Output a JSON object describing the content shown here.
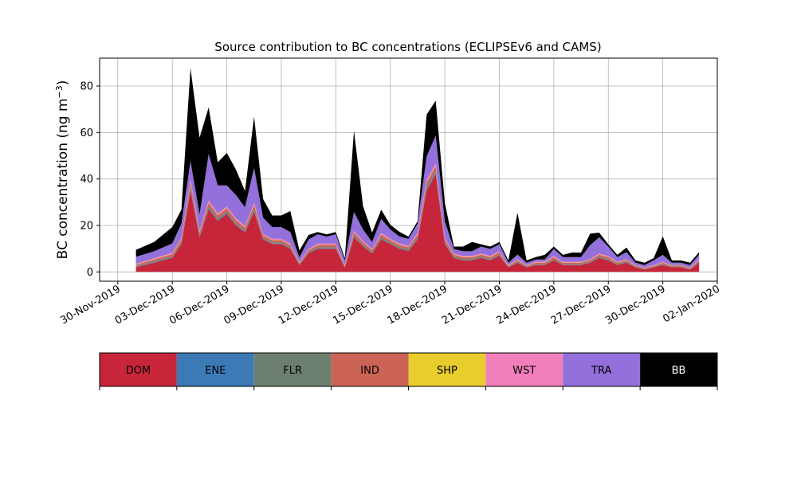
{
  "chart_data": {
    "type": "area",
    "stacked": true,
    "title": "Source contribution to BC concentrations (ECLIPSEv6 and CAMS)",
    "xlabel": "",
    "ylabel": "BC concentration (ng m",
    "ylabel_superscript": "−3",
    "ylabel_close": ")",
    "ylim": [
      -4,
      92
    ],
    "yticks": [
      0,
      20,
      40,
      60,
      80
    ],
    "xlim": [
      "2019-11-29",
      "2020-01-02"
    ],
    "xticks": [
      "30-Nov-2019",
      "03-Dec-2019",
      "06-Dec-2019",
      "09-Dec-2019",
      "12-Dec-2019",
      "15-Dec-2019",
      "18-Dec-2019",
      "21-Dec-2019",
      "24-Dec-2019",
      "27-Dec-2019",
      "30-Dec-2019",
      "02-Jan-2020"
    ],
    "grid": true,
    "legend": "colorbar-below",
    "x": [
      "2019-12-01",
      "2019-12-02",
      "2019-12-03",
      "2019-12-03T12",
      "2019-12-04",
      "2019-12-04T12",
      "2019-12-05",
      "2019-12-05T12",
      "2019-12-06",
      "2019-12-06T12",
      "2019-12-07",
      "2019-12-07T12",
      "2019-12-08",
      "2019-12-08T12",
      "2019-12-09",
      "2019-12-09T12",
      "2019-12-10",
      "2019-12-10T12",
      "2019-12-11",
      "2019-12-11T12",
      "2019-12-12",
      "2019-12-12T12",
      "2019-12-13",
      "2019-12-13T12",
      "2019-12-14",
      "2019-12-14T12",
      "2019-12-15",
      "2019-12-15T12",
      "2019-12-16",
      "2019-12-16T12",
      "2019-12-17",
      "2019-12-17T12",
      "2019-12-18",
      "2019-12-18T12",
      "2019-12-19",
      "2019-12-19T12",
      "2019-12-20",
      "2019-12-20T12",
      "2019-12-21",
      "2019-12-21T12",
      "2019-12-22",
      "2019-12-22T12",
      "2019-12-23",
      "2019-12-23T12",
      "2019-12-24",
      "2019-12-24T12",
      "2019-12-25",
      "2019-12-25T12",
      "2019-12-26",
      "2019-12-26T12",
      "2019-12-27",
      "2019-12-27T12",
      "2019-12-28",
      "2019-12-28T12",
      "2019-12-29",
      "2019-12-29T12",
      "2019-12-30",
      "2019-12-30T12",
      "2019-12-31",
      "2019-12-31T12",
      "2020-01-01"
    ],
    "series": [
      {
        "name": "DOM",
        "color": "#c7263a",
        "values": [
          2,
          4,
          6,
          12,
          35,
          15,
          27,
          22,
          25,
          20,
          17,
          26,
          14,
          12,
          12,
          10,
          3,
          8,
          10,
          10,
          10,
          2,
          15,
          11,
          8,
          14,
          12,
          10,
          9,
          14,
          35,
          42,
          12,
          6,
          5,
          5,
          6,
          5,
          7,
          2,
          4,
          2,
          3,
          3,
          5,
          3,
          3,
          3,
          4,
          6,
          5,
          3,
          4,
          2,
          1,
          2,
          3,
          2,
          2,
          1,
          4
        ]
      },
      {
        "name": "ENE",
        "color": "#3c7ab6",
        "values": [
          0.2,
          0.2,
          0.2,
          0.3,
          0.5,
          0.3,
          0.4,
          0.3,
          0.3,
          0.3,
          0.3,
          0.4,
          0.3,
          0.2,
          0.2,
          0.2,
          0.1,
          0.2,
          0.2,
          0.2,
          0.2,
          0.1,
          0.3,
          0.2,
          0.2,
          0.3,
          0.2,
          0.2,
          0.2,
          0.3,
          0.5,
          0.5,
          0.3,
          0.2,
          0.2,
          0.2,
          0.2,
          0.2,
          0.2,
          0.1,
          0.2,
          0.1,
          0.1,
          0.1,
          0.2,
          0.1,
          0.1,
          0.1,
          0.2,
          0.2,
          0.2,
          0.1,
          0.2,
          0.1,
          0.1,
          0.1,
          0.1,
          0.1,
          0.1,
          0.1,
          0.2
        ]
      },
      {
        "name": "FLR",
        "color": "#6d8070",
        "values": [
          0.3,
          0.4,
          0.5,
          0.6,
          1,
          0.6,
          0.8,
          0.7,
          0.7,
          0.7,
          0.6,
          0.8,
          0.5,
          0.5,
          0.5,
          0.5,
          0.3,
          0.4,
          0.5,
          0.5,
          0.5,
          0.2,
          0.6,
          0.5,
          0.4,
          0.6,
          0.5,
          0.5,
          0.5,
          0.6,
          1,
          1,
          0.6,
          0.4,
          0.4,
          0.4,
          0.4,
          0.4,
          0.4,
          0.2,
          0.3,
          0.2,
          0.3,
          0.3,
          0.4,
          0.3,
          0.3,
          0.3,
          0.3,
          0.4,
          0.4,
          0.3,
          0.3,
          0.2,
          0.2,
          0.2,
          0.3,
          0.2,
          0.2,
          0.2,
          0.3
        ]
      },
      {
        "name": "IND",
        "color": "#cb6457",
        "values": [
          0.6,
          0.8,
          1,
          1.2,
          2,
          1.2,
          1.6,
          1.4,
          1.4,
          1.3,
          1.2,
          1.6,
          1,
          1,
          1,
          0.9,
          0.5,
          0.8,
          0.9,
          0.9,
          0.9,
          0.4,
          1.2,
          1,
          0.8,
          1.2,
          1,
          1,
          0.9,
          1.2,
          2,
          2,
          1.2,
          0.8,
          0.8,
          0.8,
          0.8,
          0.8,
          0.8,
          0.4,
          0.6,
          0.4,
          0.6,
          0.6,
          0.8,
          0.6,
          0.6,
          0.6,
          0.6,
          0.8,
          0.8,
          0.6,
          0.6,
          0.4,
          0.4,
          0.4,
          0.6,
          0.4,
          0.4,
          0.4,
          0.6
        ]
      },
      {
        "name": "SHP",
        "color": "#e8cd2c",
        "values": [
          0.1,
          0.1,
          0.1,
          0.1,
          0.2,
          0.1,
          0.2,
          0.1,
          0.1,
          0.1,
          0.1,
          0.2,
          0.1,
          0.1,
          0.1,
          0.1,
          0.05,
          0.1,
          0.1,
          0.1,
          0.1,
          0.05,
          0.1,
          0.1,
          0.1,
          0.1,
          0.1,
          0.1,
          0.1,
          0.1,
          0.2,
          0.2,
          0.1,
          0.1,
          0.1,
          0.1,
          0.1,
          0.1,
          0.1,
          0.05,
          0.1,
          0.05,
          0.05,
          0.05,
          0.1,
          0.05,
          0.05,
          0.05,
          0.1,
          0.1,
          0.1,
          0.05,
          0.1,
          0.05,
          0.05,
          0.05,
          0.05,
          0.05,
          0.05,
          0.05,
          0.1
        ]
      },
      {
        "name": "WST",
        "color": "#f07fbc",
        "values": [
          0.3,
          0.4,
          0.5,
          0.6,
          1,
          0.6,
          0.8,
          0.7,
          0.7,
          0.7,
          0.6,
          0.8,
          0.5,
          0.5,
          0.5,
          0.5,
          0.3,
          0.4,
          0.5,
          0.5,
          0.5,
          0.2,
          0.6,
          0.5,
          0.4,
          0.6,
          0.5,
          0.5,
          0.5,
          0.6,
          1,
          1,
          0.6,
          0.4,
          0.4,
          0.4,
          0.4,
          0.4,
          0.4,
          0.2,
          0.3,
          0.2,
          0.3,
          0.3,
          0.4,
          0.3,
          0.3,
          0.3,
          0.3,
          0.4,
          0.4,
          0.3,
          0.3,
          0.2,
          0.2,
          0.2,
          0.3,
          0.2,
          0.2,
          0.2,
          0.3
        ]
      },
      {
        "name": "TRA",
        "color": "#9370db",
        "values": [
          3,
          3,
          4,
          6,
          8,
          7,
          20,
          12,
          9,
          10,
          8,
          15,
          7,
          5,
          5,
          5,
          2,
          4,
          4,
          3,
          4,
          2,
          8,
          5,
          3,
          6,
          4,
          3,
          3,
          4,
          10,
          12,
          7,
          2,
          2,
          2,
          3,
          3,
          3,
          1,
          2,
          1,
          1,
          1,
          3,
          2,
          2,
          2,
          6,
          7,
          4,
          2,
          3,
          1,
          1,
          2,
          3,
          1,
          1,
          1,
          2
        ]
      },
      {
        "name": "BB",
        "color": "#000000",
        "values": [
          3,
          4,
          7,
          6,
          40,
          33,
          20,
          10,
          14,
          11,
          7,
          22,
          8,
          5,
          5,
          9,
          3,
          2,
          1,
          1,
          1,
          1,
          35,
          10,
          4,
          4,
          2,
          2,
          1,
          1,
          18,
          15,
          8,
          1,
          2,
          4,
          1,
          1,
          1,
          1,
          18,
          1,
          1,
          2,
          1,
          1,
          2,
          2,
          5,
          2,
          1,
          1,
          2,
          1,
          1,
          1,
          8,
          1,
          1,
          1,
          1
        ]
      }
    ]
  },
  "legend_colorbar": {
    "items": [
      {
        "label": "DOM",
        "color": "#c7263a",
        "text_color": "#000000"
      },
      {
        "label": "ENE",
        "color": "#3c7ab6",
        "text_color": "#000000"
      },
      {
        "label": "FLR",
        "color": "#6d8070",
        "text_color": "#000000"
      },
      {
        "label": "IND",
        "color": "#cb6457",
        "text_color": "#000000"
      },
      {
        "label": "SHP",
        "color": "#e8cd2c",
        "text_color": "#000000"
      },
      {
        "label": "WST",
        "color": "#f07fbc",
        "text_color": "#000000"
      },
      {
        "label": "TRA",
        "color": "#9370db",
        "text_color": "#000000"
      },
      {
        "label": "BB",
        "color": "#000000",
        "text_color": "#ffffff"
      }
    ]
  }
}
